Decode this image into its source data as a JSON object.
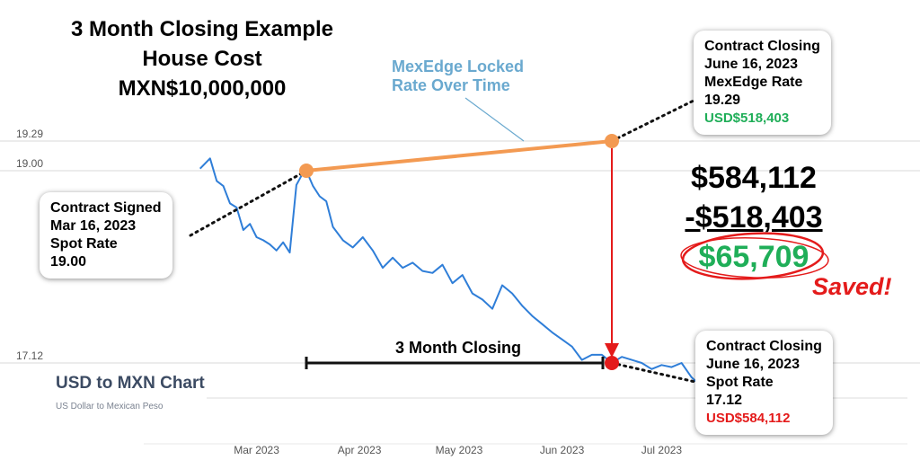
{
  "title": {
    "line1": "3 Month Closing  Example",
    "line2": "House Cost",
    "line3": "MXN$10,000,000"
  },
  "locked_note": {
    "line1": "MexEdge Locked",
    "line2": "Rate Over Time"
  },
  "callouts": {
    "signed": [
      "Contract Signed",
      "Mar 16, 2023",
      "Spot Rate",
      "19.00"
    ],
    "closing_top": [
      "Contract Closing",
      "June 16, 2023",
      "MexEdge Rate",
      "19.29"
    ],
    "closing_top_usd": "USD$518,403",
    "closing_bottom": [
      "Contract Closing",
      "June 16, 2023",
      "Spot Rate",
      "17.12"
    ],
    "closing_bottom_usd": "USD$584,112"
  },
  "calculation": {
    "spot_cost": "$584,112",
    "locked_cost": "-$518,403",
    "savings": "$65,709",
    "saved_label": "Saved!"
  },
  "closing_period_label": "3 Month Closing",
  "chart_header": {
    "name": "USD to MXN Chart",
    "subtitle": "US Dollar to Mexican Peso"
  },
  "colors": {
    "series": "#2f7ed8",
    "locked": "#f39a52",
    "arrow": "#e41b1b",
    "saved_green": "#1fae58",
    "note_blue": "#6aa9cf"
  },
  "chart_data": {
    "type": "line",
    "xlabel": "",
    "ylabel": "",
    "x_ticks": [
      "Mar 2023",
      "Apr 2023",
      "May 2023",
      "Jun 2023",
      "Jul 2023"
    ],
    "y_ticks": [
      "19.29",
      "19.00",
      "17.12"
    ],
    "y_tick_values": [
      19.29,
      19.0,
      17.12
    ],
    "ylim": [
      16.85,
      19.5
    ],
    "grid": true,
    "series": [
      {
        "x": [
          "2023-02-12",
          "2023-02-15",
          "2023-02-17",
          "2023-02-19",
          "2023-02-21",
          "2023-02-23",
          "2023-02-25",
          "2023-02-27",
          "2023-03-01",
          "2023-03-03",
          "2023-03-05",
          "2023-03-07",
          "2023-03-09",
          "2023-03-11",
          "2023-03-13",
          "2023-03-15",
          "2023-03-16",
          "2023-03-18",
          "2023-03-20",
          "2023-03-22",
          "2023-03-24",
          "2023-03-27",
          "2023-03-30",
          "2023-04-02",
          "2023-04-05",
          "2023-04-08",
          "2023-04-11",
          "2023-04-14",
          "2023-04-17",
          "2023-04-20",
          "2023-04-23",
          "2023-04-26",
          "2023-04-29",
          "2023-05-02",
          "2023-05-05",
          "2023-05-08",
          "2023-05-11",
          "2023-05-14",
          "2023-05-17",
          "2023-05-20",
          "2023-05-23",
          "2023-05-26",
          "2023-05-29",
          "2023-06-01",
          "2023-06-04",
          "2023-06-07",
          "2023-06-10",
          "2023-06-13",
          "2023-06-16",
          "2023-06-19",
          "2023-06-22",
          "2023-06-25",
          "2023-06-28",
          "2023-07-01",
          "2023-07-04",
          "2023-07-07",
          "2023-07-10",
          "2023-07-12"
        ],
        "values": [
          19.02,
          19.12,
          18.9,
          18.85,
          18.68,
          18.64,
          18.42,
          18.48,
          18.35,
          18.32,
          18.28,
          18.22,
          18.3,
          18.2,
          18.86,
          18.98,
          19.0,
          18.85,
          18.75,
          18.7,
          18.45,
          18.32,
          18.25,
          18.35,
          18.22,
          18.05,
          18.15,
          18.05,
          18.1,
          18.02,
          18.0,
          18.08,
          17.9,
          17.98,
          17.8,
          17.74,
          17.65,
          17.88,
          17.8,
          17.68,
          17.58,
          17.5,
          17.42,
          17.35,
          17.28,
          17.15,
          17.2,
          17.2,
          17.12,
          17.18,
          17.15,
          17.12,
          17.06,
          17.1,
          17.08,
          17.12,
          16.98,
          16.92
        ]
      }
    ],
    "locked_rate_line": {
      "x": [
        "2023-03-16",
        "2023-06-16"
      ],
      "values": [
        19.0,
        19.29
      ]
    },
    "closing_spot_point": {
      "x": "2023-06-16",
      "value": 17.12
    },
    "closing_period": {
      "x": [
        "2023-03-16",
        "2023-06-16"
      ]
    }
  }
}
